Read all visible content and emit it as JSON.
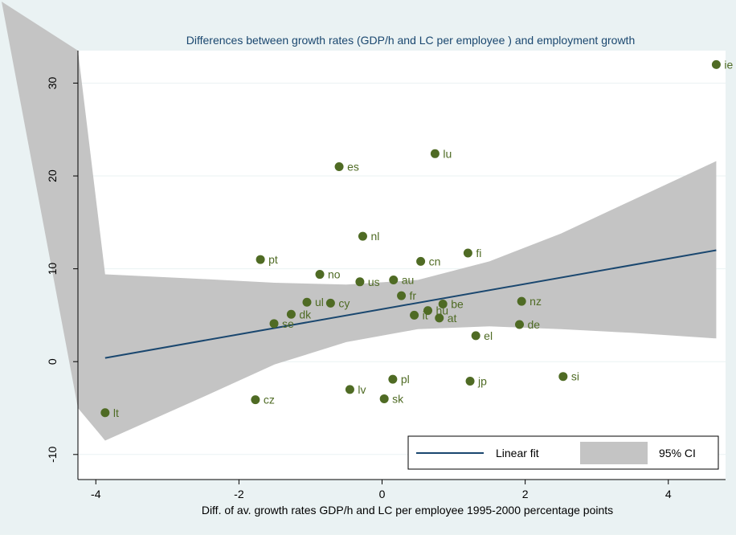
{
  "chart_data": {
    "type": "scatter",
    "title": "Differences between growth rates (GDP/h and LC per employee ) and employment growth",
    "xlabel": "Diff. of av. growth rates GDP/h and LC per employee 1995-2000 percentage points",
    "ylabel": "",
    "xlim": [
      -4.25,
      4.8
    ],
    "ylim": [
      -12.7,
      33.5
    ],
    "xticks": [
      -4,
      -2,
      0,
      2,
      4
    ],
    "xtick_labels": [
      "-4",
      "-2",
      "0",
      "2",
      "4"
    ],
    "yticks": [
      -10,
      0,
      10,
      20,
      30
    ],
    "ytick_labels": [
      "-10",
      "0",
      "10",
      "20",
      "30"
    ],
    "grid": "horizontal",
    "legend_position": "bottom-right",
    "colors": {
      "background": "#eaf2f3",
      "plot_background": "#ffffff",
      "points": "#4f6b24",
      "labels": "#4f6b24",
      "fit_line": "#1a476f",
      "ci_band": "#c4c4c4",
      "title": "#1a476f",
      "axis": "#000000"
    },
    "points": [
      {
        "label": "ie",
        "x": 4.67,
        "y": 32.0
      },
      {
        "label": "lu",
        "x": 0.74,
        "y": 22.4
      },
      {
        "label": "es",
        "x": -0.6,
        "y": 21.0
      },
      {
        "label": "nl",
        "x": -0.27,
        "y": 13.5
      },
      {
        "label": "fi",
        "x": 1.2,
        "y": 11.7
      },
      {
        "label": "pt",
        "x": -1.7,
        "y": 11.0
      },
      {
        "label": "cn",
        "x": 0.54,
        "y": 10.8
      },
      {
        "label": "no",
        "x": -0.87,
        "y": 9.4
      },
      {
        "label": "au",
        "x": 0.16,
        "y": 8.8
      },
      {
        "label": "us",
        "x": -0.31,
        "y": 8.6
      },
      {
        "label": "fr",
        "x": 0.27,
        "y": 7.1
      },
      {
        "label": "nz",
        "x": 1.95,
        "y": 6.5
      },
      {
        "label": "ul",
        "x": -1.05,
        "y": 6.4
      },
      {
        "label": "cy",
        "x": -0.72,
        "y": 6.3
      },
      {
        "label": "be",
        "x": 0.85,
        "y": 6.2
      },
      {
        "label": "hu",
        "x": 0.64,
        "y": 5.5
      },
      {
        "label": "dk",
        "x": -1.27,
        "y": 5.1
      },
      {
        "label": "it",
        "x": 0.45,
        "y": 5.0
      },
      {
        "label": "at",
        "x": 0.8,
        "y": 4.7
      },
      {
        "label": "se",
        "x": -1.51,
        "y": 4.1
      },
      {
        "label": "de",
        "x": 1.92,
        "y": 4.0
      },
      {
        "label": "el",
        "x": 1.31,
        "y": 2.8
      },
      {
        "label": "si",
        "x": 2.53,
        "y": -1.6
      },
      {
        "label": "pl",
        "x": 0.15,
        "y": -1.9
      },
      {
        "label": "jp",
        "x": 1.23,
        "y": -2.1
      },
      {
        "label": "lv",
        "x": -0.45,
        "y": -3.0
      },
      {
        "label": "sk",
        "x": 0.03,
        "y": -4.0
      },
      {
        "label": "cz",
        "x": -1.77,
        "y": -4.1
      },
      {
        "label": "lt",
        "x": -3.87,
        "y": -5.5
      }
    ],
    "fit_line": {
      "name": "Linear fit",
      "x": [
        -3.87,
        4.67
      ],
      "y": [
        0.4,
        12.0
      ]
    },
    "ci_band": {
      "name": "95% CI",
      "x": [
        -3.87,
        -2.5,
        -1.5,
        -0.5,
        0.5,
        1.5,
        2.5,
        3.5,
        4.67
      ],
      "upper": [
        9.4,
        8.9,
        8.5,
        8.3,
        8.8,
        10.8,
        13.8,
        17.4,
        21.6
      ],
      "lower": [
        -8.5,
        -3.8,
        -0.3,
        2.1,
        3.5,
        3.8,
        3.5,
        3.1,
        2.5
      ]
    },
    "ci_left_extension": {
      "x": [
        -4.25,
        -3.87
      ],
      "upper": [
        33.5,
        9.4
      ],
      "lower": [
        -5.0,
        -8.5
      ]
    }
  }
}
